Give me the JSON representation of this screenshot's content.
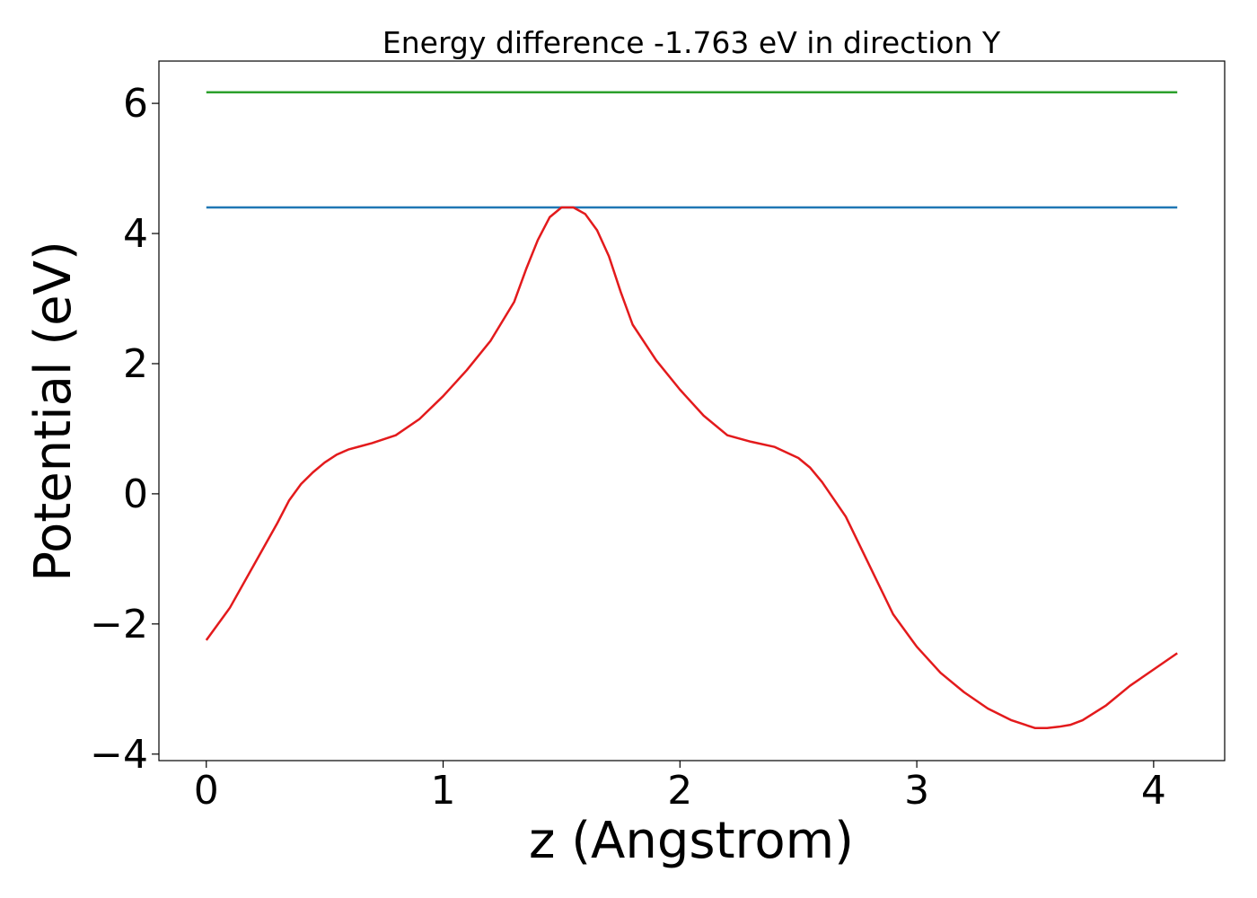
{
  "chart_data": {
    "type": "line",
    "title": "Energy difference -1.763 eV in direction Y",
    "xlabel": "z (Angstrom)",
    "ylabel": "Potential (eV)",
    "xlim": [
      -0.2,
      4.3
    ],
    "ylim": [
      -4.1,
      6.65
    ],
    "xticks": [
      0,
      1,
      2,
      3,
      4
    ],
    "xtick_labels": [
      "0",
      "1",
      "2",
      "3",
      "4"
    ],
    "yticks": [
      -4,
      -2,
      0,
      2,
      4,
      6
    ],
    "ytick_labels": [
      "−4",
      "−2",
      "0",
      "2",
      "4",
      "6"
    ],
    "grid": false,
    "series": [
      {
        "color": "#2ca02c",
        "x": [
          0,
          4.1
        ],
        "y": [
          6.17,
          6.17
        ]
      },
      {
        "color": "#1f77b4",
        "x": [
          0,
          4.1
        ],
        "y": [
          4.4,
          4.4
        ]
      },
      {
        "color": "#e31a1c",
        "x": [
          0,
          0.1,
          0.2,
          0.3,
          0.35,
          0.4,
          0.45,
          0.5,
          0.55,
          0.6,
          0.65,
          0.7,
          0.8,
          0.9,
          1.0,
          1.1,
          1.2,
          1.3,
          1.35,
          1.4,
          1.45,
          1.5,
          1.55,
          1.6,
          1.65,
          1.7,
          1.75,
          1.8,
          1.9,
          2.0,
          2.1,
          2.2,
          2.3,
          2.4,
          2.5,
          2.55,
          2.6,
          2.7,
          2.8,
          2.9,
          3.0,
          3.1,
          3.2,
          3.3,
          3.4,
          3.5,
          3.55,
          3.6,
          3.65,
          3.7,
          3.8,
          3.9,
          4.0,
          4.1
        ],
        "y": [
          -2.25,
          -1.75,
          -1.1,
          -0.45,
          -0.1,
          0.15,
          0.33,
          0.48,
          0.6,
          0.68,
          0.73,
          0.78,
          0.9,
          1.15,
          1.5,
          1.9,
          2.35,
          2.95,
          3.45,
          3.9,
          4.25,
          4.4,
          4.4,
          4.3,
          4.05,
          3.65,
          3.1,
          2.6,
          2.05,
          1.6,
          1.2,
          0.9,
          0.8,
          0.72,
          0.55,
          0.4,
          0.18,
          -0.35,
          -1.1,
          -1.85,
          -2.35,
          -2.75,
          -3.05,
          -3.3,
          -3.48,
          -3.6,
          -3.6,
          -3.58,
          -3.55,
          -3.48,
          -3.25,
          -2.95,
          -2.7,
          -2.45
        ]
      }
    ]
  }
}
